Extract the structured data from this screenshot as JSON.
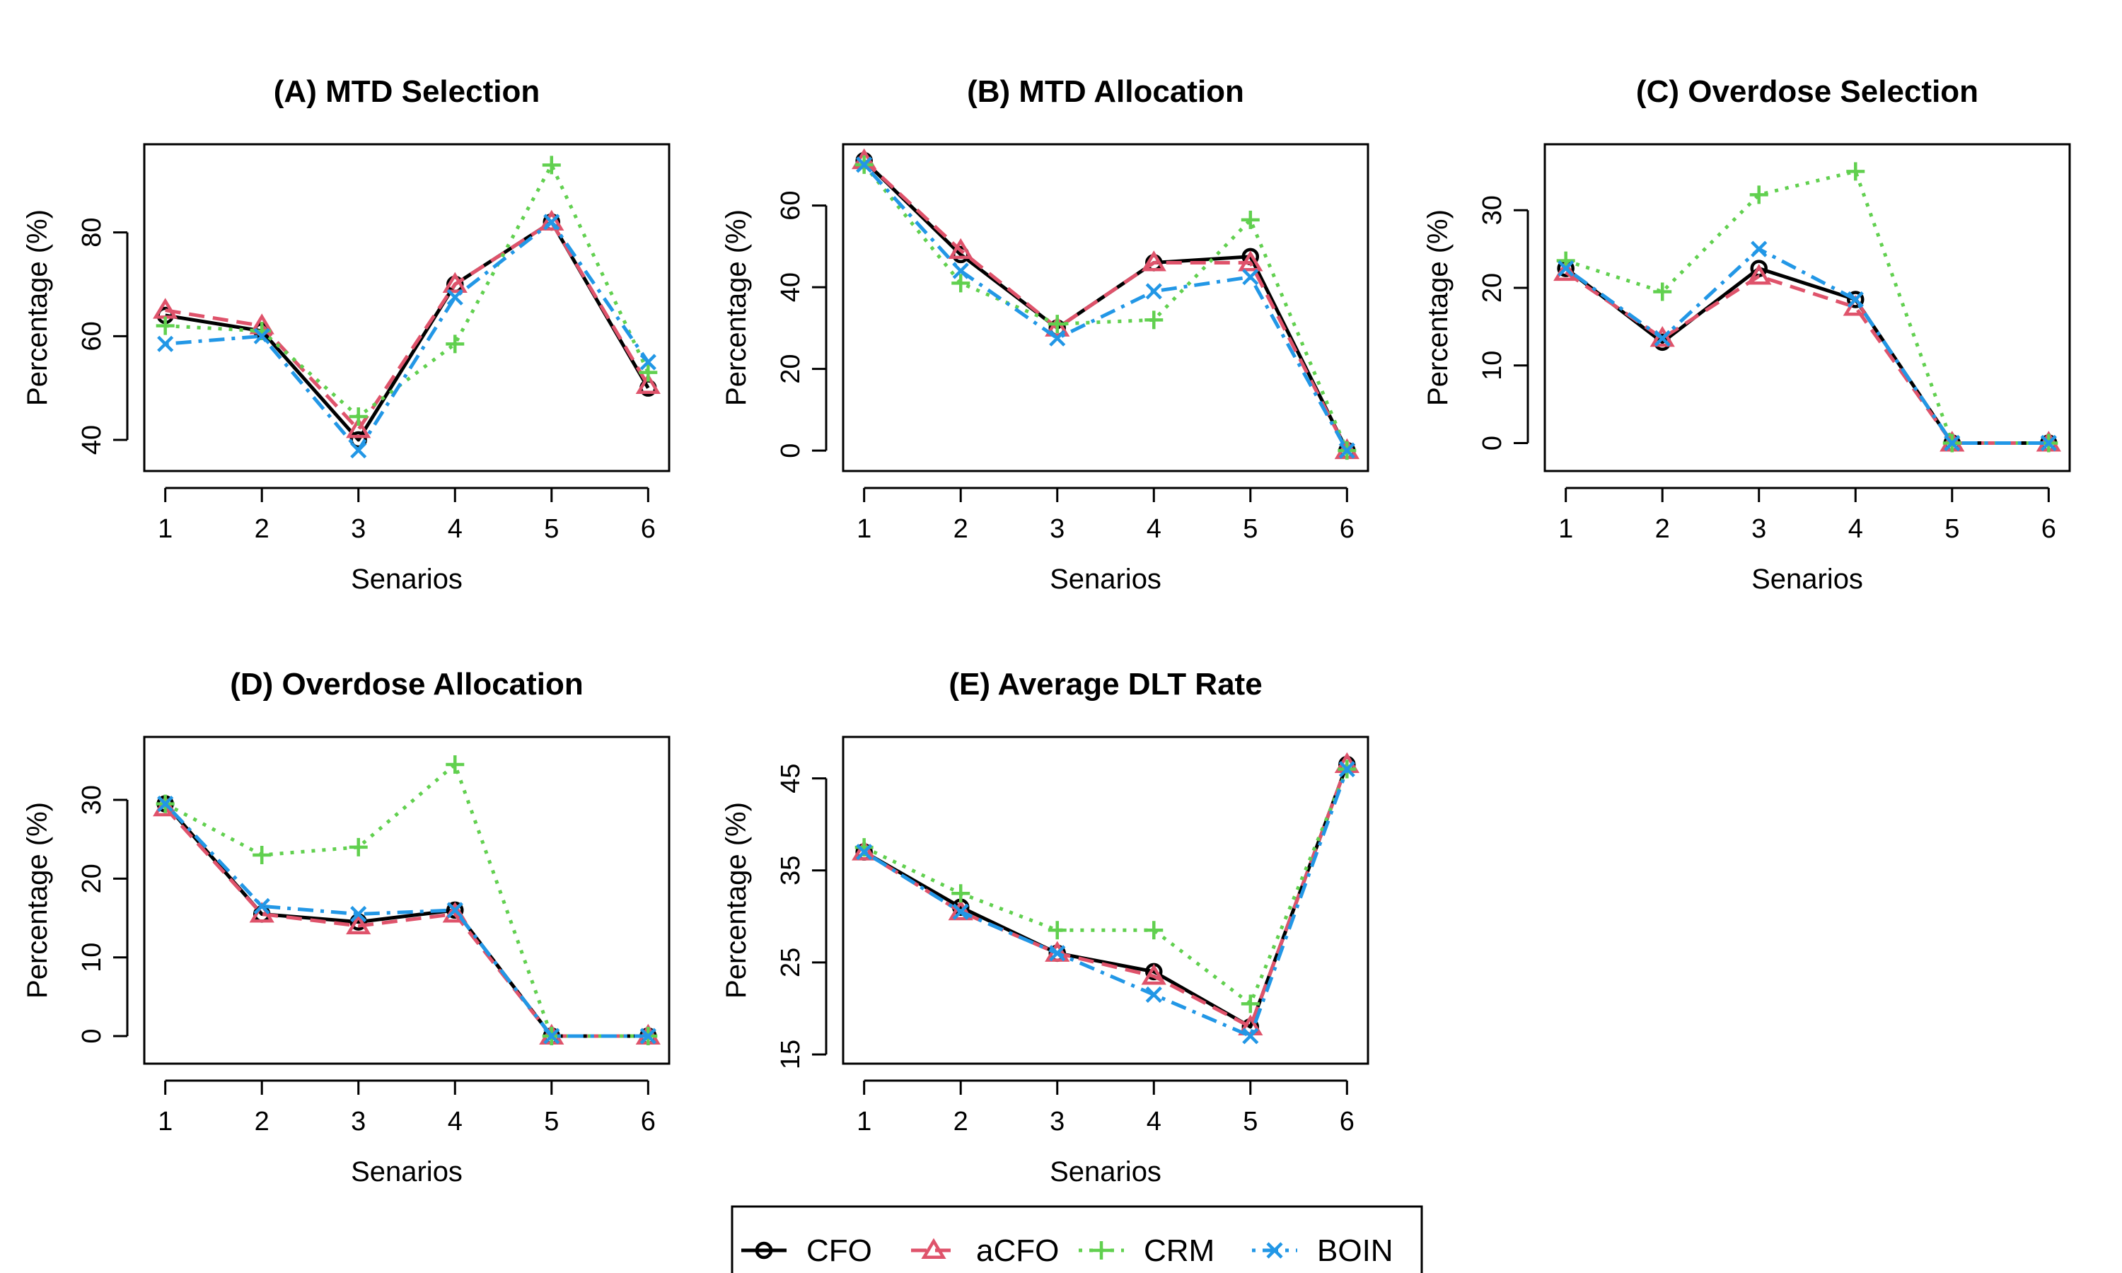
{
  "colors": {
    "CFO": "#000000",
    "aCFO": "#DF536B",
    "CRM": "#61D04F",
    "BOIN": "#2297E6"
  },
  "legend": {
    "entries": [
      {
        "name": "CFO",
        "marker": "circle",
        "dash": "solid"
      },
      {
        "name": "aCFO",
        "marker": "triangle",
        "dash": "dashed"
      },
      {
        "name": "CRM",
        "marker": "plus",
        "dash": "dotted"
      },
      {
        "name": "BOIN",
        "marker": "cross",
        "dash": "dotdash"
      }
    ]
  },
  "chart_data": [
    {
      "type": "line",
      "title": "(A) MTD Selection",
      "xlabel": "Senarios",
      "ylabel": "Percentage (%)",
      "categories": [
        1,
        2,
        3,
        4,
        5,
        6
      ],
      "yticks": [
        40,
        60,
        80
      ],
      "ylim": [
        34,
        97
      ],
      "series": [
        {
          "name": "CFO",
          "values": [
            64,
            61,
            40,
            70,
            82,
            50
          ]
        },
        {
          "name": "aCFO",
          "values": [
            65,
            62,
            42,
            70,
            82,
            50.5
          ]
        },
        {
          "name": "CRM",
          "values": [
            62,
            61,
            44.5,
            58.5,
            93,
            53
          ]
        },
        {
          "name": "BOIN",
          "values": [
            58.5,
            60,
            38,
            67.5,
            82,
            55
          ]
        }
      ]
    },
    {
      "type": "line",
      "title": "(B) MTD Allocation",
      "xlabel": "Senarios",
      "ylabel": "Percentage (%)",
      "categories": [
        1,
        2,
        3,
        4,
        5,
        6
      ],
      "yticks": [
        0,
        20,
        40,
        60
      ],
      "ylim": [
        -5,
        75
      ],
      "series": [
        {
          "name": "CFO",
          "values": [
            71,
            48,
            30,
            46,
            47.5,
            0
          ]
        },
        {
          "name": "aCFO",
          "values": [
            71,
            49,
            30,
            46,
            46,
            0
          ]
        },
        {
          "name": "CRM",
          "values": [
            70,
            41,
            31,
            32,
            56.5,
            0
          ]
        },
        {
          "name": "BOIN",
          "values": [
            70,
            44,
            27.5,
            39,
            42.5,
            0
          ]
        }
      ]
    },
    {
      "type": "line",
      "title": "(C) Overdose Selection",
      "xlabel": "Senarios",
      "ylabel": "Percentage (%)",
      "categories": [
        1,
        2,
        3,
        4,
        5,
        6
      ],
      "yticks": [
        0,
        10,
        20,
        30
      ],
      "ylim": [
        -3.6,
        38.5
      ],
      "series": [
        {
          "name": "CFO",
          "values": [
            22.5,
            13,
            22.5,
            18.5,
            0,
            0
          ]
        },
        {
          "name": "aCFO",
          "values": [
            22,
            13.5,
            21.5,
            17.5,
            0,
            0
          ]
        },
        {
          "name": "CRM",
          "values": [
            23.5,
            19.5,
            32,
            35,
            0,
            0
          ]
        },
        {
          "name": "BOIN",
          "values": [
            22.5,
            13.5,
            25,
            18.5,
            0,
            0
          ]
        }
      ]
    },
    {
      "type": "line",
      "title": "(D) Overdose Allocation",
      "xlabel": "Senarios",
      "ylabel": "Percentage (%)",
      "categories": [
        1,
        2,
        3,
        4,
        5,
        6
      ],
      "yticks": [
        0,
        10,
        20,
        30
      ],
      "ylim": [
        -3.5,
        38
      ],
      "series": [
        {
          "name": "CFO",
          "values": [
            29.5,
            15.5,
            14.5,
            16,
            0,
            0
          ]
        },
        {
          "name": "aCFO",
          "values": [
            29,
            15.5,
            14,
            15.5,
            0,
            0
          ]
        },
        {
          "name": "CRM",
          "values": [
            29.5,
            23,
            24,
            34.5,
            0,
            0
          ]
        },
        {
          "name": "BOIN",
          "values": [
            29.5,
            16.5,
            15.5,
            16,
            0,
            0
          ]
        }
      ]
    },
    {
      "type": "line",
      "title": "(E) Average DLT Rate",
      "xlabel": "Senarios",
      "ylabel": "Percentage (%)",
      "categories": [
        1,
        2,
        3,
        4,
        5,
        6
      ],
      "yticks": [
        15,
        25,
        35,
        45
      ],
      "ylim": [
        14,
        49.5
      ],
      "series": [
        {
          "name": "CFO",
          "values": [
            37,
            31,
            26,
            24,
            18,
            46.5
          ]
        },
        {
          "name": "aCFO",
          "values": [
            37,
            30.5,
            26,
            23.5,
            18,
            46.5
          ]
        },
        {
          "name": "CRM",
          "values": [
            37.5,
            32.5,
            28.5,
            28.5,
            20.5,
            46
          ]
        },
        {
          "name": "BOIN",
          "values": [
            37,
            30.5,
            26,
            21.5,
            17,
            46
          ]
        }
      ]
    }
  ]
}
